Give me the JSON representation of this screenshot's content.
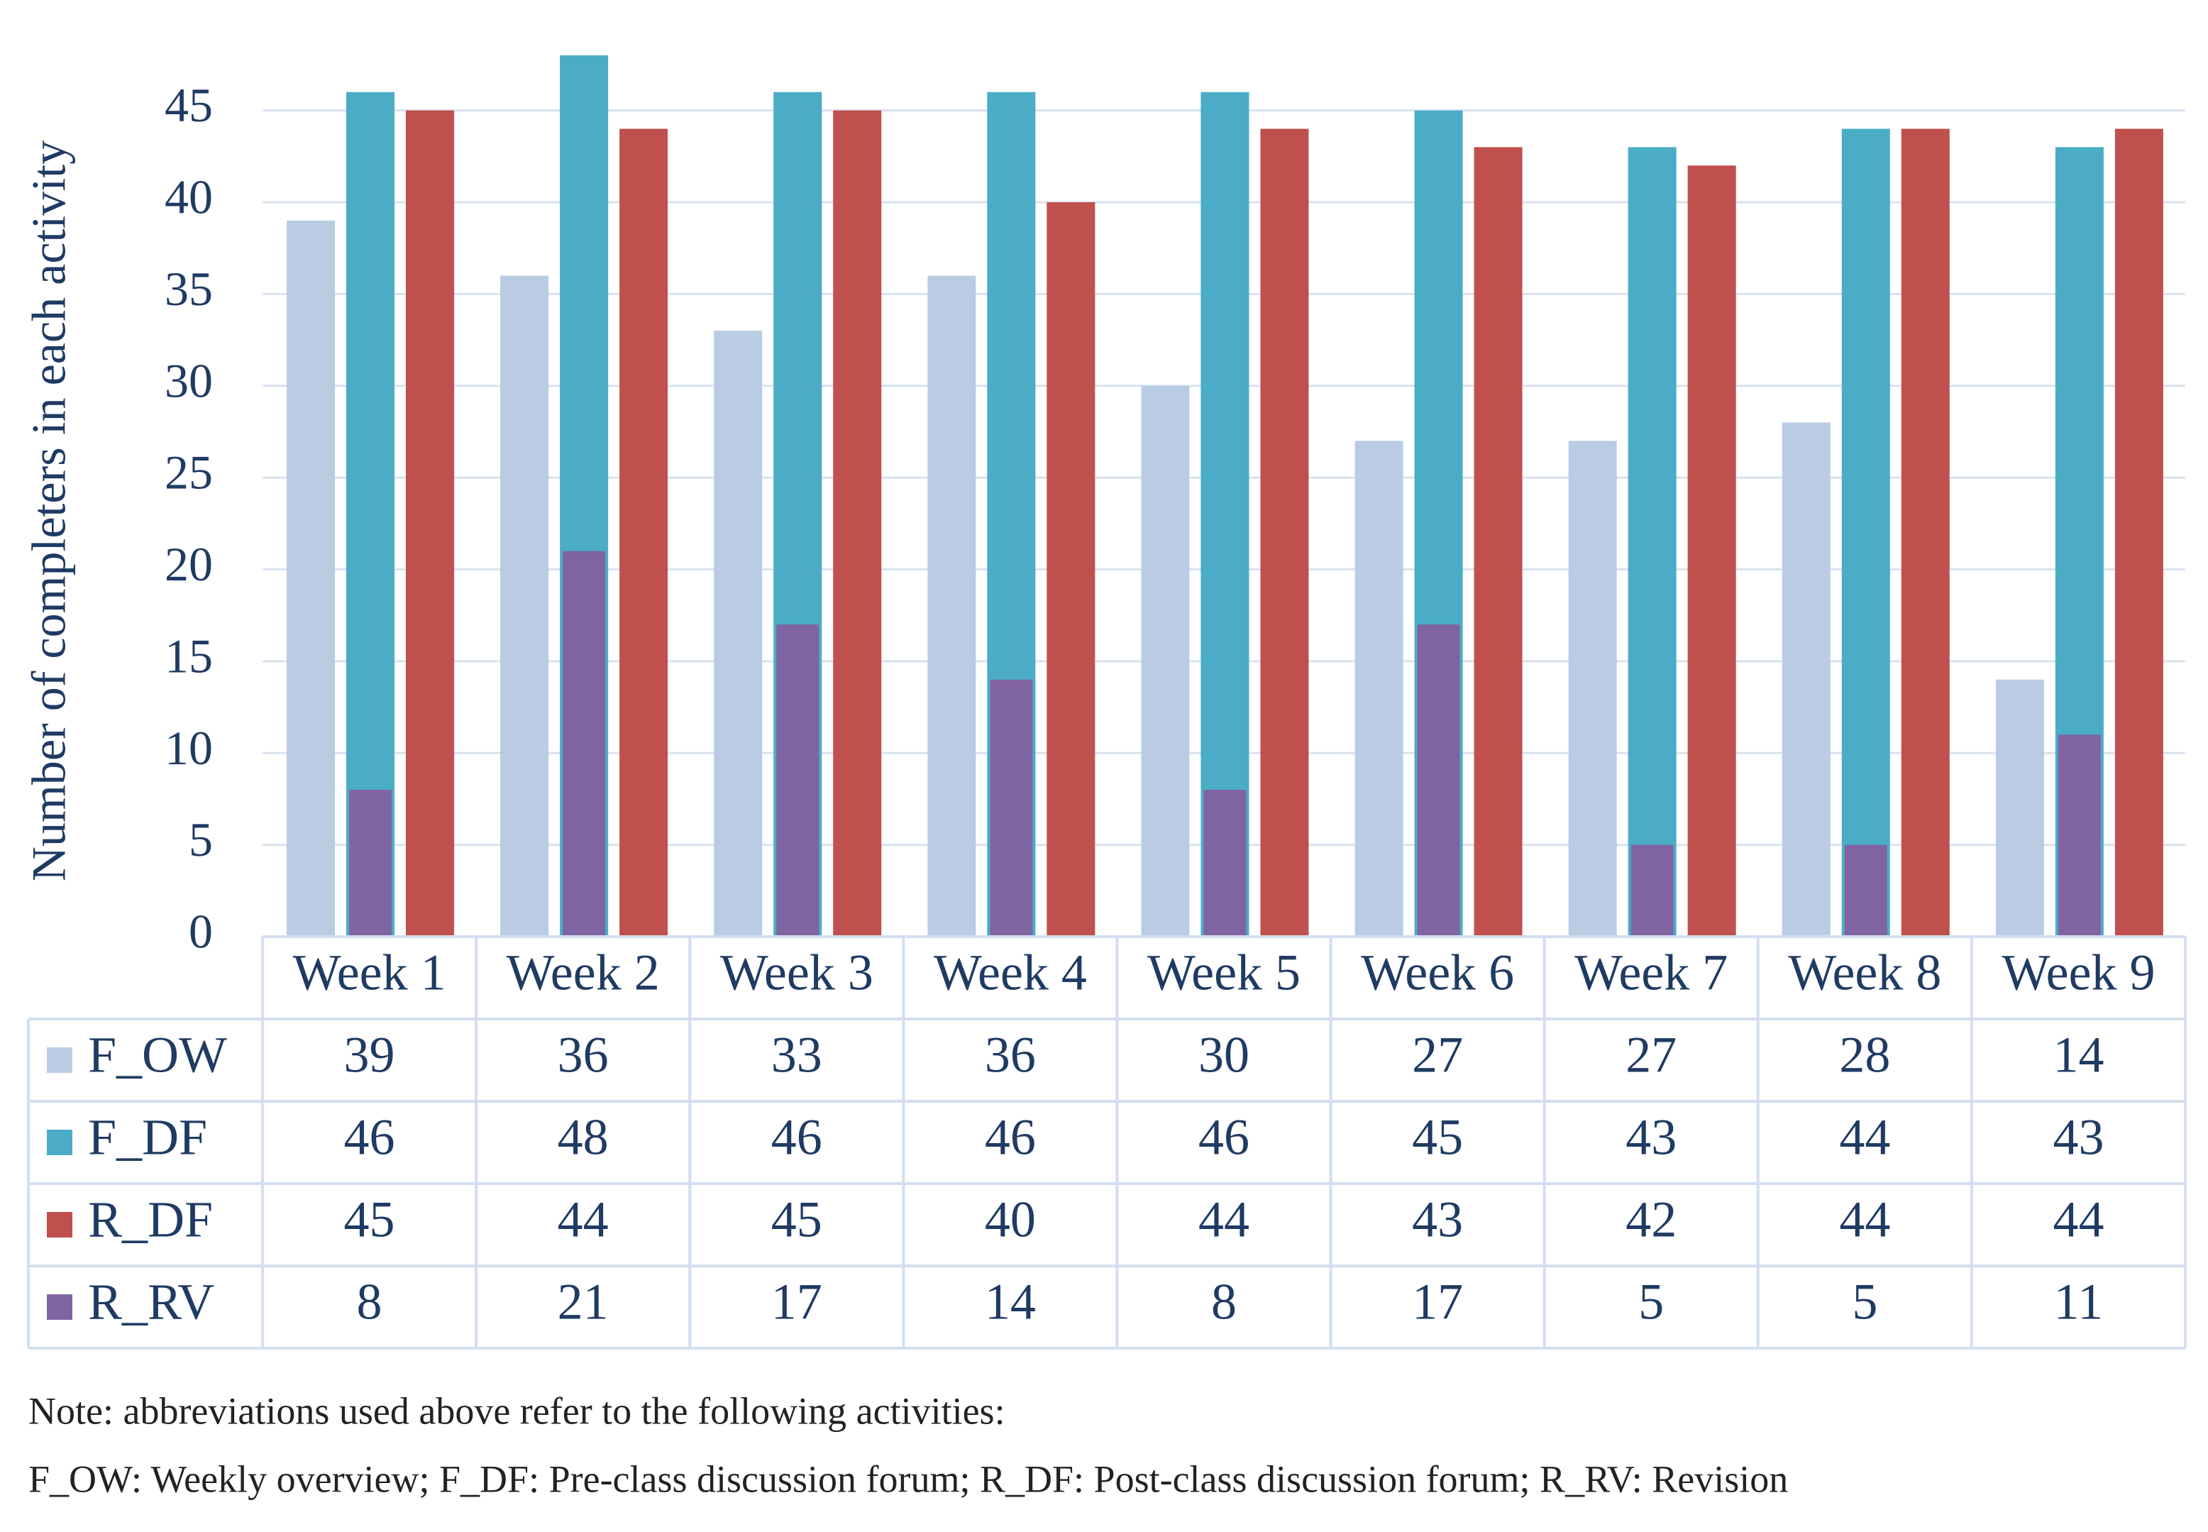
{
  "chart_data": {
    "type": "bar",
    "y_label": "Number of completers in each activity",
    "categories": [
      "Week 1",
      "Week 2",
      "Week 3",
      "Week 4",
      "Week 5",
      "Week 6",
      "Week 7",
      "Week 8",
      "Week 9"
    ],
    "series": [
      {
        "name": "F_OW",
        "color": "#b9cce4",
        "values": [
          39,
          36,
          33,
          36,
          30,
          27,
          27,
          28,
          14
        ]
      },
      {
        "name": "F_DF",
        "color": "#4bacc6",
        "values": [
          46,
          48,
          46,
          46,
          46,
          45,
          43,
          44,
          43
        ]
      },
      {
        "name": "R_DF",
        "color": "#c0504d",
        "values": [
          45,
          44,
          45,
          40,
          44,
          43,
          42,
          44,
          44
        ]
      },
      {
        "name": "R_RV",
        "color": "#8064a2",
        "values": [
          8,
          21,
          17,
          14,
          8,
          17,
          5,
          5,
          11
        ]
      }
    ],
    "ylim": [
      0,
      48
    ],
    "yticks": [
      0,
      5,
      10,
      15,
      20,
      25,
      30,
      35,
      40,
      45
    ],
    "grid": true,
    "notes": [
      "Note: abbreviations used above refer to the following activities:",
      "F_OW: Weekly overview; F_DF: Pre-class discussion forum; R_DF: Post-class discussion forum; R_RV: Revision"
    ]
  }
}
